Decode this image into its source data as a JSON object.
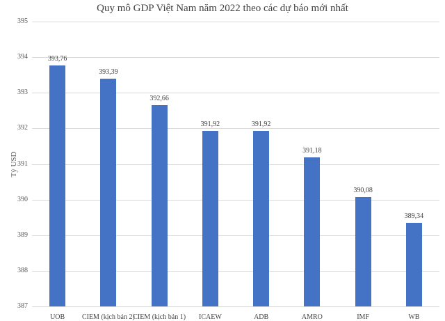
{
  "chart_data": {
    "type": "bar",
    "title": "Quy mô GDP Việt Nam năm 2022 theo các dự báo mới nhất",
    "xlabel": "",
    "ylabel": "Tỷ USD",
    "ylim": [
      387,
      395
    ],
    "yticks": [
      387,
      388,
      389,
      390,
      391,
      392,
      393,
      394,
      395
    ],
    "grid": true,
    "legend": "none",
    "categories": [
      "UOB",
      "CIEM (kịch bản 2)",
      "CIEM (kịch bản 1)",
      "ICAEW",
      "ADB",
      "AMRO",
      "IMF",
      "WB"
    ],
    "values": [
      393.76,
      393.39,
      392.66,
      391.92,
      391.92,
      391.18,
      390.08,
      389.34
    ],
    "value_labels": [
      "393,76",
      "393,39",
      "392,66",
      "391,92",
      "391,92",
      "391,18",
      "390,08",
      "389,34"
    ],
    "bar_color": "#4472c4"
  }
}
